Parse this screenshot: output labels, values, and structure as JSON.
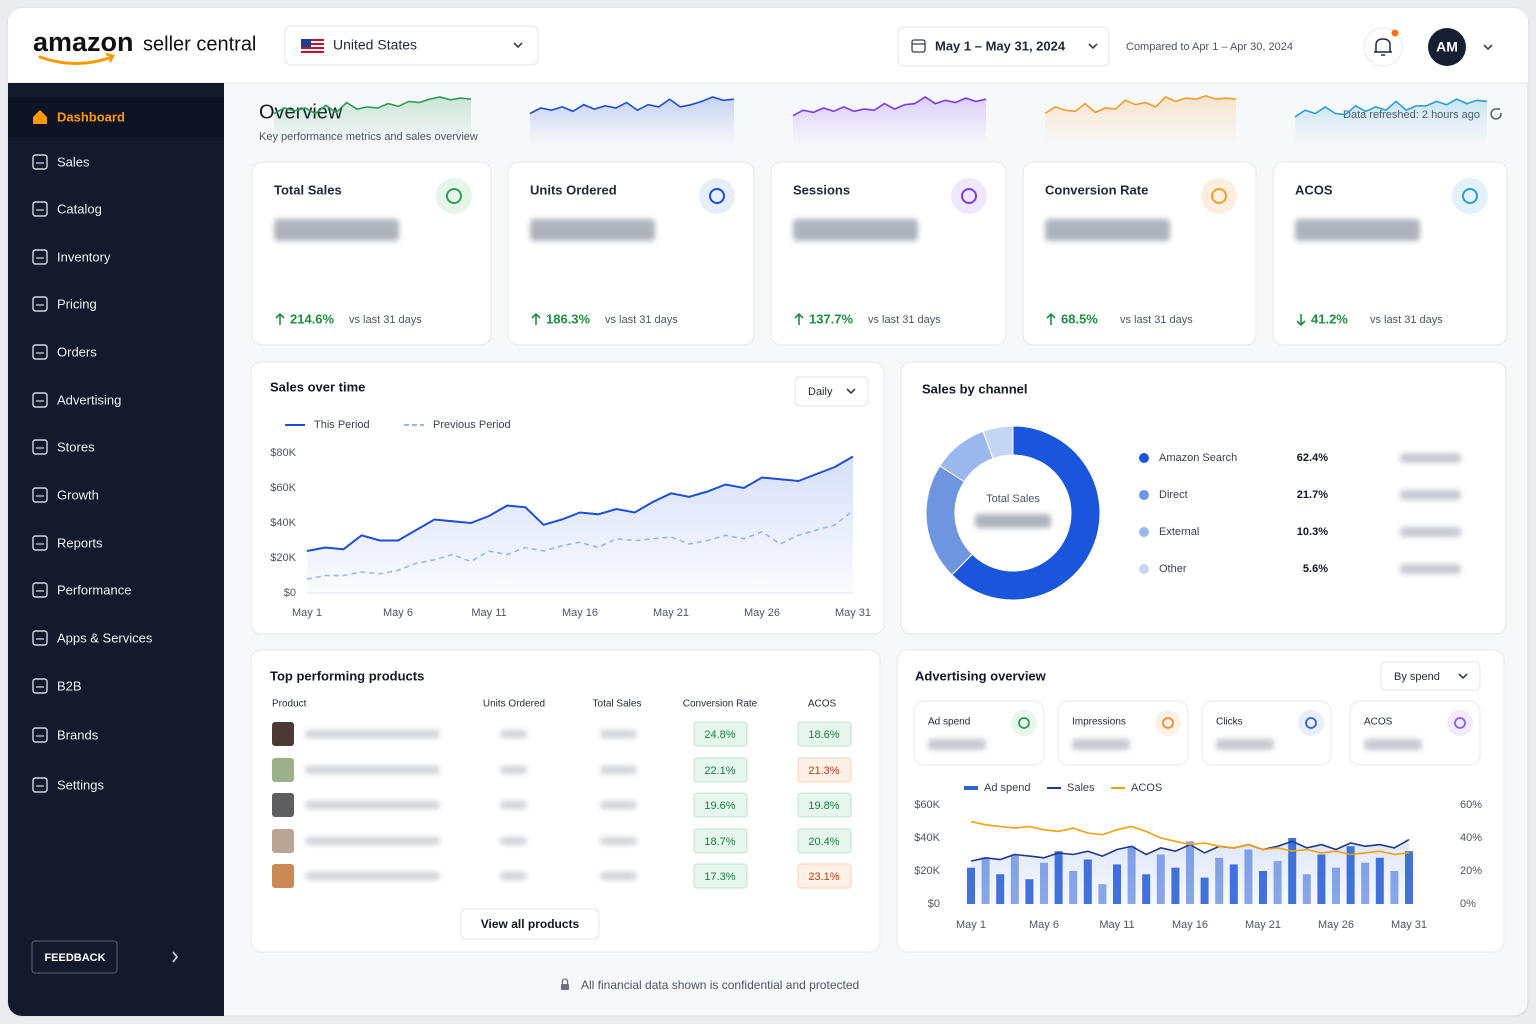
{
  "header": {
    "logo": "amazon",
    "app_name": "seller central",
    "country": "United States",
    "date_range": "May 1 – May 31, 2024",
    "comparison": "Compared to Apr 1 – Apr 30, 2024",
    "avatar": "AM"
  },
  "sidebar": {
    "items": [
      "Dashboard",
      "Sales",
      "Catalog",
      "Inventory",
      "Pricing",
      "Orders",
      "Advertising",
      "Stores",
      "Growth",
      "Reports",
      "Performance",
      "Apps & Services",
      "B2B",
      "Brands",
      "Settings"
    ],
    "active_item": 0,
    "feedback": "FEEDBACK"
  },
  "overview": {
    "title": "Overview",
    "subtitle": "Key performance metrics and sales overview",
    "refreshed": "Data refreshed: 2 hours ago"
  },
  "kpis": [
    {
      "label": "Total Sales",
      "change": "214.6%",
      "direction": "up",
      "period": "vs last 31 days",
      "color": "#2e9e57",
      "sparkline": [
        3,
        4,
        3.5,
        4,
        3,
        4.5,
        3.2,
        5,
        3.8,
        4.2,
        4,
        4.8,
        4.3,
        5.2,
        5,
        5.6,
        6,
        5.5,
        5.8,
        5.6
      ]
    },
    {
      "label": "Units Ordered",
      "change": "186.3%",
      "direction": "up",
      "period": "vs last 31 days",
      "color": "#1d4ed8",
      "sparkline": [
        3,
        4,
        3.6,
        4.2,
        3.4,
        4.6,
        3.8,
        4.4,
        4,
        5,
        3.6,
        4.6,
        4.2,
        5.6,
        4.2,
        4.6,
        5.2,
        6,
        5.4,
        5.6
      ]
    },
    {
      "label": "Sessions",
      "change": "137.7%",
      "direction": "up",
      "period": "vs last 31 days",
      "color": "#7c3aed",
      "sparkline": [
        2.6,
        3.6,
        3.2,
        4,
        3.4,
        4.2,
        3.4,
        3.8,
        3.6,
        4.8,
        3.8,
        4.6,
        4.8,
        6,
        4.8,
        5.4,
        5,
        5.8,
        5.2,
        5.6
      ]
    },
    {
      "label": "Conversion Rate",
      "change": "68.5%",
      "direction": "up",
      "period": "vs last 31 days",
      "color": "#f39c2c",
      "sparkline": [
        3,
        4.2,
        3.6,
        3.4,
        4.8,
        3.2,
        4,
        3.8,
        5.4,
        4.6,
        5,
        4.2,
        6,
        5.2,
        5.8,
        5.6,
        6.2,
        5.6,
        5.8,
        5.6
      ]
    },
    {
      "label": "ACOS",
      "change": "41.2%",
      "direction": "down",
      "period": "vs last 31 days",
      "color": "#2a9fd6",
      "sparkline": [
        2.4,
        3.6,
        3,
        4.2,
        3,
        2.8,
        4.4,
        3.4,
        4.2,
        3.6,
        5.2,
        3.6,
        4.4,
        4.4,
        5.2,
        4.6,
        5.6,
        4.8,
        5.4,
        5.2
      ]
    }
  ],
  "chart_data": [
    {
      "type": "line",
      "title": "Sales over time",
      "dropdown": "Daily",
      "categories": [
        "May 1",
        null,
        null,
        null,
        null,
        "May 6",
        null,
        null,
        null,
        null,
        "May 11",
        null,
        null,
        null,
        null,
        "May 16",
        null,
        null,
        null,
        null,
        "May 21",
        null,
        null,
        null,
        null,
        "May 26",
        null,
        null,
        null,
        null,
        "May 31"
      ],
      "series": [
        {
          "name": "This Period",
          "color": "#1d4ed8",
          "values": [
            24000,
            26000,
            25000,
            33000,
            30000,
            30000,
            36000,
            42000,
            41000,
            40000,
            44000,
            50000,
            49000,
            39000,
            42000,
            46000,
            45000,
            48000,
            46000,
            52000,
            57000,
            55000,
            58000,
            62000,
            60000,
            66000,
            65000,
            64000,
            68000,
            72000,
            78000
          ]
        },
        {
          "name": "Previous Period",
          "color": "#93b4ee",
          "dashed": true,
          "values": [
            8000,
            10000,
            10000,
            12000,
            11000,
            13000,
            17000,
            19000,
            22000,
            18000,
            24000,
            22000,
            26000,
            24000,
            27000,
            29000,
            26000,
            31000,
            30000,
            31000,
            32000,
            28000,
            30000,
            33000,
            31000,
            35000,
            28000,
            33000,
            36000,
            39000,
            47000
          ]
        }
      ],
      "ylim": [
        0,
        80000
      ],
      "yticks": [
        {
          "value": 0,
          "label": "$0"
        },
        {
          "value": 20000,
          "label": "$20K"
        },
        {
          "value": 40000,
          "label": "$40K"
        },
        {
          "value": 60000,
          "label": "$60K"
        },
        {
          "value": 80000,
          "label": "$80K"
        }
      ],
      "grid": false
    },
    {
      "type": "pie",
      "donut": true,
      "title": "Sales by channel",
      "center_label": "Total Sales",
      "categories": [
        "Amazon Search",
        "Direct",
        "External",
        "Other"
      ],
      "values": [
        62.4,
        21.7,
        10.3,
        5.6
      ],
      "value_labels": [
        "62.4%",
        "21.7%",
        "10.3%",
        "5.6%"
      ],
      "colors": [
        "#1a56db",
        "#6f95e0",
        "#9ab8ee",
        "#c5d6f5"
      ]
    },
    {
      "type": "combo",
      "categories": [
        "May 1",
        null,
        null,
        null,
        null,
        "May 6",
        null,
        null,
        null,
        null,
        "May 11",
        null,
        null,
        null,
        null,
        "May 16",
        null,
        null,
        null,
        null,
        "May 21",
        null,
        null,
        null,
        null,
        "May 26",
        null,
        null,
        null,
        null,
        "May 31"
      ],
      "series": [
        {
          "name": "Ad spend",
          "type": "bar",
          "color": "#2f63d6",
          "values": [
            22000,
            28000,
            18000,
            30000,
            15000,
            25000,
            32000,
            20000,
            27000,
            12000,
            24000,
            35000,
            18000,
            30000,
            22000,
            38000,
            16000,
            28000,
            24000,
            33000,
            20000,
            26000,
            40000,
            18000,
            30000,
            22000,
            35000,
            25000,
            28000,
            20000,
            32000
          ]
        },
        {
          "name": "Sales",
          "type": "line",
          "color": "#1e3a8a",
          "values": [
            26000,
            28000,
            27000,
            30000,
            29000,
            28000,
            31000,
            30000,
            32000,
            29000,
            33000,
            35000,
            30000,
            34000,
            32000,
            36000,
            31000,
            35000,
            34000,
            36000,
            33000,
            35000,
            38000,
            34000,
            36000,
            33000,
            37000,
            35000,
            36000,
            34000,
            39000
          ]
        },
        {
          "name": "ACOS",
          "type": "line",
          "axis": "y2",
          "color": "#f59e0b",
          "values": [
            50,
            48,
            47,
            46,
            47,
            45,
            44,
            46,
            43,
            42,
            45,
            47,
            44,
            40,
            38,
            36,
            37,
            35,
            34,
            36,
            33,
            34,
            32,
            33,
            31,
            32,
            30,
            31,
            32,
            30,
            31
          ]
        }
      ],
      "ylim": [
        0,
        60000
      ],
      "yticks": [
        {
          "value": 0,
          "label": "$0"
        },
        {
          "value": 20000,
          "label": "$20K"
        },
        {
          "value": 40000,
          "label": "$40K"
        },
        {
          "value": 60000,
          "label": "$60K"
        }
      ],
      "y2lim": [
        0,
        60
      ],
      "y2ticks": [
        {
          "value": 0,
          "label": "0%"
        },
        {
          "value": 20,
          "label": "20%"
        },
        {
          "value": 40,
          "label": "40%"
        },
        {
          "value": 60,
          "label": "60%"
        }
      ]
    }
  ],
  "products": {
    "title": "Top performing products",
    "columns": [
      "Product",
      "Units Ordered",
      "Total Sales",
      "Conversion Rate",
      "ACOS"
    ],
    "rows": [
      {
        "conversion_rate": "24.8%",
        "acos": "18.6%",
        "acos_color": "green"
      },
      {
        "conversion_rate": "22.1%",
        "acos": "21.3%",
        "acos_color": "orange"
      },
      {
        "conversion_rate": "19.6%",
        "acos": "19.8%",
        "acos_color": "green"
      },
      {
        "conversion_rate": "18.7%",
        "acos": "20.4%",
        "acos_color": "green"
      },
      {
        "conversion_rate": "17.3%",
        "acos": "23.1%",
        "acos_color": "orange"
      }
    ],
    "button": "View all products"
  },
  "advertising": {
    "title": "Advertising overview",
    "dropdown": "By spend",
    "metrics": [
      "Ad spend",
      "Impressions",
      "Clicks",
      "ACOS"
    ]
  },
  "footer": {
    "note": "All financial data shown is confidential and protected"
  }
}
